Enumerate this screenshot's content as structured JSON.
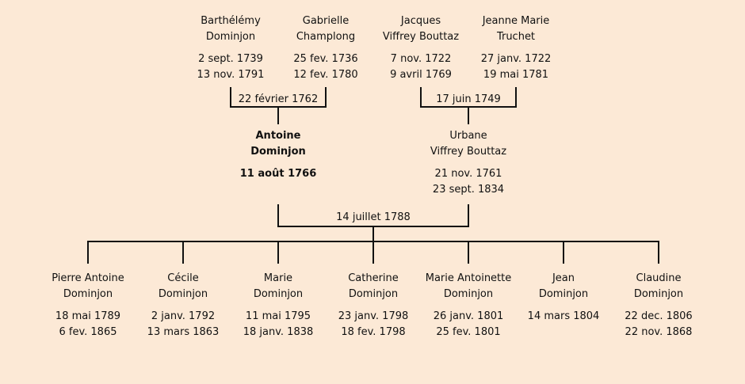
{
  "colors": {
    "background": "#fce9d6",
    "line": "#111111",
    "text": "#111111"
  },
  "grandparents": [
    {
      "name1": "Barthélémy",
      "name2": "Dominjon",
      "birth": "2 sept. 1739",
      "death": "13 nov. 1791"
    },
    {
      "name1": "Gabrielle",
      "name2": "Champlong",
      "birth": "25 fev. 1736",
      "death": "12 fev. 1780"
    },
    {
      "name1": "Jacques",
      "name2": "Viffrey Bouttaz",
      "birth": "7 nov. 1722",
      "death": "9 avril 1769"
    },
    {
      "name1": "Jeanne Marie",
      "name2": "Truchet",
      "birth": "27 janv. 1722",
      "death": "19 mai 1781"
    }
  ],
  "grandparent_marriages": [
    {
      "date": "22 février 1762"
    },
    {
      "date": "17 juin 1749"
    }
  ],
  "parents": [
    {
      "name1": "Antoine",
      "name2": "Dominjon",
      "birth": "11 août 1766",
      "death": ""
    },
    {
      "name1": "Urbane",
      "name2": "Viffrey Bouttaz",
      "birth": "21 nov. 1761",
      "death": "23 sept. 1834"
    }
  ],
  "parent_marriage": {
    "date": "14 juillet 1788"
  },
  "children": [
    {
      "name1": "Pierre Antoine",
      "name2": "Dominjon",
      "birth": "18 mai 1789",
      "death": "6 fev. 1865"
    },
    {
      "name1": "Cécile",
      "name2": "Dominjon",
      "birth": "2 janv. 1792",
      "death": "13 mars 1863"
    },
    {
      "name1": "Marie",
      "name2": "Dominjon",
      "birth": "11 mai 1795",
      "death": "18 janv. 1838"
    },
    {
      "name1": "Catherine",
      "name2": "Dominjon",
      "birth": "23 janv. 1798",
      "death": "18 fev. 1798"
    },
    {
      "name1": "Marie Antoinette",
      "name2": "Dominjon",
      "birth": "26 janv. 1801",
      "death": "25 fev. 1801"
    },
    {
      "name1": "Jean",
      "name2": "Dominjon",
      "birth": "14 mars 1804",
      "death": ""
    },
    {
      "name1": "Claudine",
      "name2": "Dominjon",
      "birth": "22 dec. 1806",
      "death": "22 nov. 1868"
    }
  ]
}
